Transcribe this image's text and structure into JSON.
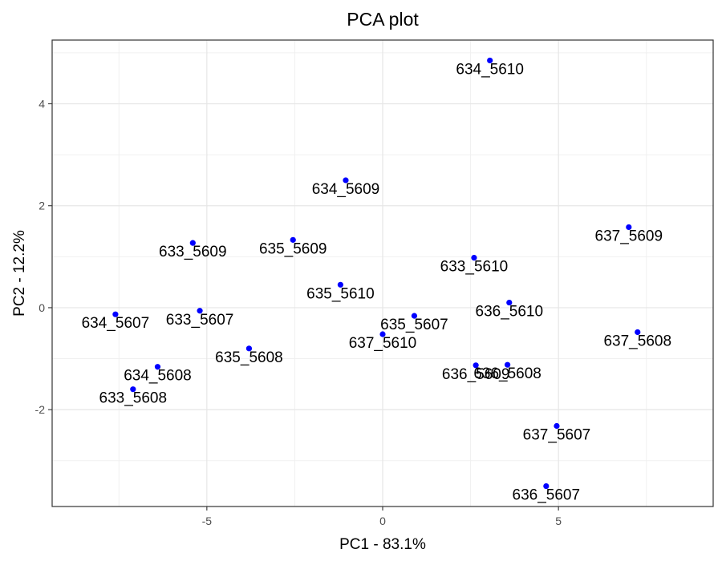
{
  "chart_data": {
    "type": "scatter",
    "title": "PCA plot",
    "xlabel": "PC1 - 83.1%",
    "ylabel": "PC2 - 12.2%",
    "xlim": [
      -9.4,
      9.4
    ],
    "ylim": [
      -3.9,
      5.25
    ],
    "xticks": [
      -5,
      0,
      5
    ],
    "yticks": [
      -2,
      0,
      2,
      4
    ],
    "grid": true,
    "point_color": "#0000ff",
    "points": [
      {
        "label": "634_5610",
        "x": 3.05,
        "y": 4.85
      },
      {
        "label": "634_5609",
        "x": -1.05,
        "y": 2.5
      },
      {
        "label": "637_5609",
        "x": 7.0,
        "y": 1.58
      },
      {
        "label": "633_5609",
        "x": -5.4,
        "y": 1.27
      },
      {
        "label": "635_5609",
        "x": -2.55,
        "y": 1.33
      },
      {
        "label": "633_5610",
        "x": 2.6,
        "y": 0.98
      },
      {
        "label": "635_5610",
        "x": -1.2,
        "y": 0.45
      },
      {
        "label": "636_5610",
        "x": 3.6,
        "y": 0.1
      },
      {
        "label": "634_5607",
        "x": -7.6,
        "y": -0.13
      },
      {
        "label": "633_5607",
        "x": -5.2,
        "y": -0.06
      },
      {
        "label": "635_5607",
        "x": 0.9,
        "y": -0.16
      },
      {
        "label": "637_5610",
        "x": 0.0,
        "y": -0.52
      },
      {
        "label": "637_5608",
        "x": 7.25,
        "y": -0.48
      },
      {
        "label": "635_5608",
        "x": -3.8,
        "y": -0.8
      },
      {
        "label": "636_5609",
        "x": 2.65,
        "y": -1.13
      },
      {
        "label": "636_5608",
        "x": 3.55,
        "y": -1.12
      },
      {
        "label": "634_5608",
        "x": -6.4,
        "y": -1.16
      },
      {
        "label": "633_5608",
        "x": -7.1,
        "y": -1.6
      },
      {
        "label": "637_5607",
        "x": 4.95,
        "y": -2.32
      },
      {
        "label": "636_5607",
        "x": 4.65,
        "y": -3.5
      }
    ]
  }
}
